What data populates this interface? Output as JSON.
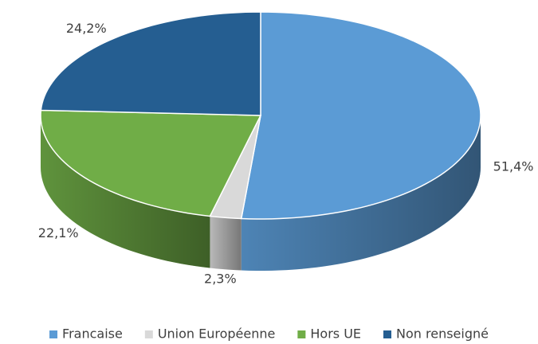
{
  "chart_data": {
    "type": "pie",
    "categories": [
      "Francaise",
      "Union Européenne",
      "Hors UE",
      "Non renseigné"
    ],
    "values": [
      51.4,
      2.3,
      22.1,
      24.2
    ],
    "value_labels": [
      "51,4%",
      "2,3%",
      "22,1%",
      "24,2%"
    ],
    "colors": [
      "#5b9bd5",
      "#d9d9d9",
      "#70ad47",
      "#255e91"
    ],
    "legend": "bottom"
  }
}
